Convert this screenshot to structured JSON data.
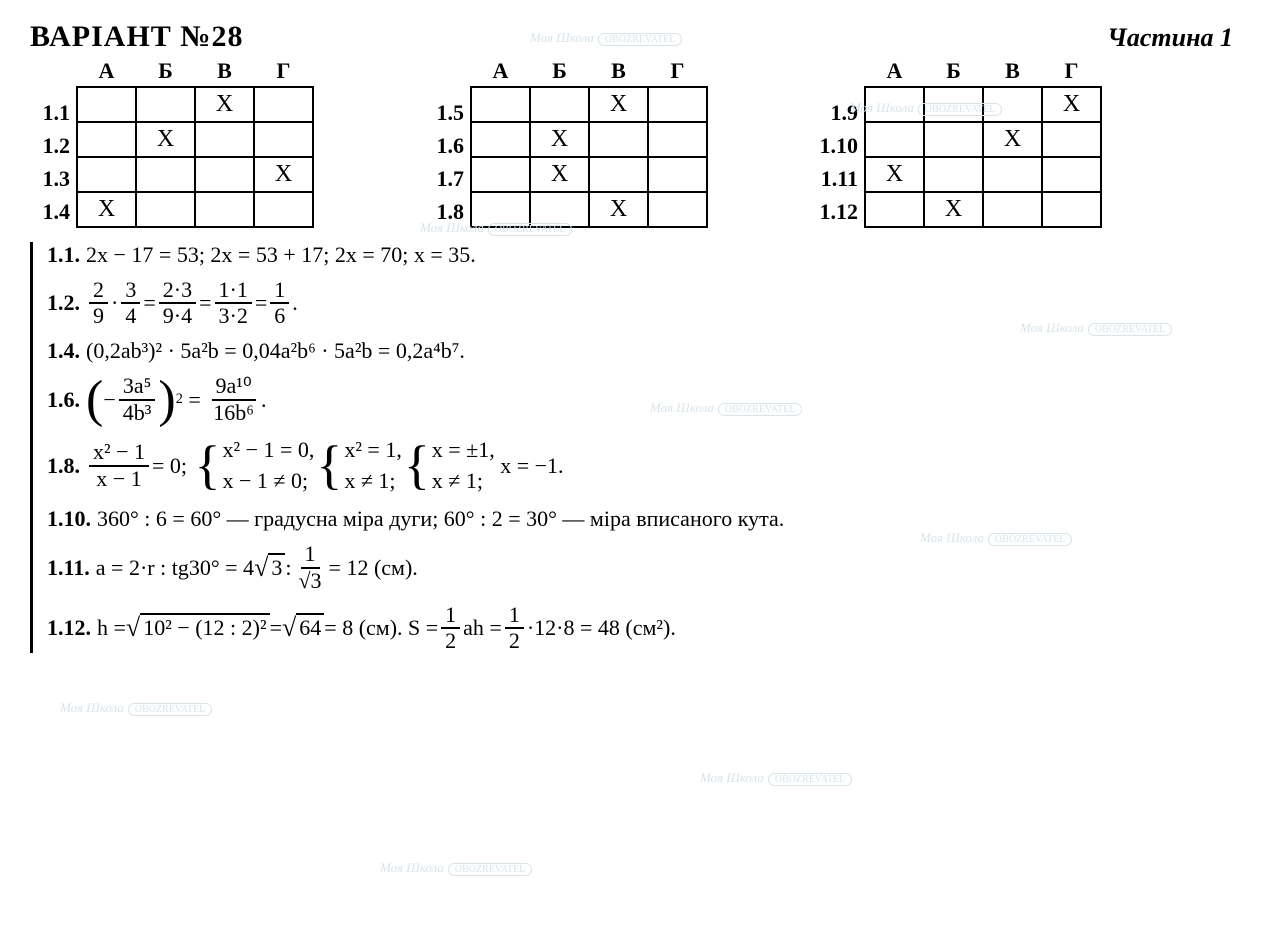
{
  "header": {
    "title": "ВАРІАНТ №28",
    "part": "Частина 1"
  },
  "columns": [
    "А",
    "Б",
    "В",
    "Г"
  ],
  "tables": [
    {
      "rows": [
        "1.1",
        "1.2",
        "1.3",
        "1.4"
      ],
      "marks": [
        [
          0,
          0,
          1,
          0
        ],
        [
          0,
          1,
          0,
          0
        ],
        [
          0,
          0,
          0,
          1
        ],
        [
          1,
          0,
          0,
          0
        ]
      ]
    },
    {
      "rows": [
        "1.5",
        "1.6",
        "1.7",
        "1.8"
      ],
      "marks": [
        [
          0,
          0,
          1,
          0
        ],
        [
          0,
          1,
          0,
          0
        ],
        [
          0,
          1,
          0,
          0
        ],
        [
          0,
          0,
          1,
          0
        ]
      ]
    },
    {
      "rows": [
        "1.9",
        "1.10",
        "1.11",
        "1.12"
      ],
      "marks": [
        [
          0,
          0,
          0,
          1
        ],
        [
          0,
          0,
          1,
          0
        ],
        [
          1,
          0,
          0,
          0
        ],
        [
          0,
          1,
          0,
          0
        ]
      ]
    }
  ],
  "mark_symbol": "X",
  "solutions": {
    "s11": {
      "n": "1.1.",
      "t": "2x − 17 = 53;  2x = 53 + 17;  2x = 70;  x = 35."
    },
    "s12": {
      "n": "1.2.",
      "a1": "2",
      "a2": "9",
      "b1": "3",
      "b2": "4",
      "c1": "2·3",
      "c2": "9·4",
      "d1": "1·1",
      "d2": "3·2",
      "e1": "1",
      "e2": "6",
      "dot": "."
    },
    "s14": {
      "n": "1.4.",
      "t": "(0,2ab³)² · 5a²b = 0,04a²b⁶ · 5a²b = 0,2a⁴b⁷."
    },
    "s16": {
      "n": "1.6.",
      "p1": "3a⁵",
      "p2": "4b³",
      "exp": "2",
      "r1": "9a¹⁰",
      "r2": "16b⁶",
      "dot": "."
    },
    "s18": {
      "n": "1.8.",
      "f1": "x² − 1",
      "f2": "x − 1",
      "eq": " = 0;",
      "g1": "x² − 1 = 0,",
      "g2": "x − 1 ≠ 0;",
      "h1": "x² = 1,",
      "h2": "x ≠ 1;",
      "i1": "x = ±1,",
      "i2": "x ≠ 1;",
      "tail": "x = −1."
    },
    "s110": {
      "n": "1.10.",
      "t": "360° : 6 = 60° — градусна міра дуги; 60° : 2 = 30° — міра вписаного кута."
    },
    "s111": {
      "n": "1.11.",
      "pre": "a = 2·r : tg30° = 4",
      "sq": "3",
      "mid": " : ",
      "f1": "1",
      "f2": "√3",
      "tail": " = 12 (см)."
    },
    "s112": {
      "n": "1.12.",
      "pre": "h = ",
      "sq": "10² − (12 : 2)²",
      "mid": " = ",
      "sq2": "64",
      "post": " = 8 (см).  S = ",
      "f1": "1",
      "f2": "2",
      "mid2": "ah = ",
      "g1": "1",
      "g2": "2",
      "tail": "·12·8 = 48 (см²)."
    }
  },
  "watermark": {
    "text": "Моя Школа",
    "badge": "OBOZREVATEL"
  }
}
